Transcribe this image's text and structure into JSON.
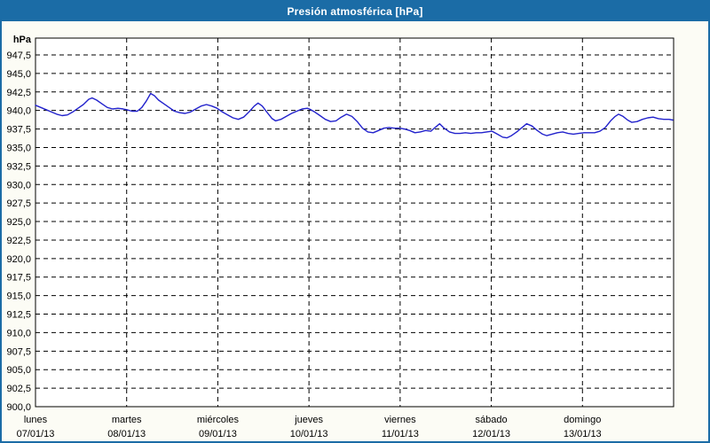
{
  "window": {
    "title": "Presión atmosférica [hPa]"
  },
  "colors": {
    "titlebar_bg": "#1b6ca6",
    "titlebar_text": "#ffffff",
    "window_border": "#1b6ca6",
    "page_bg": "#fcfcf5",
    "plot_bg": "#ffffff",
    "grid": "#000000",
    "axis": "#000000",
    "line": "#2222cc"
  },
  "chart_data": {
    "type": "line",
    "title": "Presión atmosférica [hPa]",
    "ylabel": "hPa",
    "decimal_separator": ",",
    "grid": "dashed",
    "y_axis": {
      "unit_label": "hPa",
      "min": 900,
      "max_tick": 947.5,
      "tick_step": 2.5,
      "tick_labels": [
        "947,5",
        "945,0",
        "942,5",
        "940,0",
        "937,5",
        "935,0",
        "932,5",
        "930,0",
        "927,5",
        "925,0",
        "922,5",
        "920,0",
        "917,5",
        "915,0",
        "912,5",
        "910,0",
        "907,5",
        "905,0",
        "902,5",
        "900,0"
      ],
      "tick_values": [
        947.5,
        945.0,
        942.5,
        940.0,
        937.5,
        935.0,
        932.5,
        930.0,
        927.5,
        925.0,
        922.5,
        920.0,
        917.5,
        915.0,
        912.5,
        910.0,
        907.5,
        905.0,
        902.5,
        900.0
      ]
    },
    "x_axis": {
      "total_hours": 168,
      "day_boundaries_hours": [
        0,
        24,
        48,
        72,
        96,
        120,
        144
      ],
      "categories": [
        {
          "day": "lunes",
          "date": "07/01/13"
        },
        {
          "day": "martes",
          "date": "08/01/13"
        },
        {
          "day": "miércoles",
          "date": "09/01/13"
        },
        {
          "day": "jueves",
          "date": "10/01/13"
        },
        {
          "day": "viernes",
          "date": "11/01/13"
        },
        {
          "day": "sábado",
          "date": "12/01/13"
        },
        {
          "day": "domingo",
          "date": "13/01/13"
        }
      ]
    },
    "series": [
      {
        "name": "Presión atmosférica",
        "unit": "hPa",
        "color": "#2222cc",
        "points": [
          [
            0.0,
            940.7
          ],
          [
            1.4,
            940.4
          ],
          [
            2.8,
            940.1
          ],
          [
            4.2,
            939.8
          ],
          [
            5.6,
            939.5
          ],
          [
            7.0,
            939.3
          ],
          [
            8.4,
            939.4
          ],
          [
            9.8,
            939.8
          ],
          [
            11.2,
            940.3
          ],
          [
            12.6,
            940.8
          ],
          [
            14.0,
            941.5
          ],
          [
            14.9,
            941.7
          ],
          [
            16.1,
            941.4
          ],
          [
            17.5,
            940.9
          ],
          [
            18.9,
            940.4
          ],
          [
            20.3,
            940.2
          ],
          [
            21.7,
            940.3
          ],
          [
            23.1,
            940.2
          ],
          [
            24.0,
            940.1
          ],
          [
            25.4,
            939.9
          ],
          [
            26.8,
            939.9
          ],
          [
            28.0,
            940.4
          ],
          [
            29.2,
            941.3
          ],
          [
            30.3,
            942.3
          ],
          [
            31.3,
            942.0
          ],
          [
            32.4,
            941.4
          ],
          [
            33.8,
            940.9
          ],
          [
            35.2,
            940.4
          ],
          [
            36.6,
            939.9
          ],
          [
            38.0,
            939.7
          ],
          [
            39.4,
            939.6
          ],
          [
            40.8,
            939.8
          ],
          [
            42.2,
            940.2
          ],
          [
            43.6,
            940.6
          ],
          [
            45.0,
            940.8
          ],
          [
            46.4,
            940.6
          ],
          [
            47.8,
            940.3
          ],
          [
            49.2,
            939.8
          ],
          [
            50.6,
            939.4
          ],
          [
            52.0,
            939.0
          ],
          [
            53.4,
            938.8
          ],
          [
            54.8,
            939.1
          ],
          [
            56.2,
            939.8
          ],
          [
            57.6,
            940.6
          ],
          [
            58.6,
            941.0
          ],
          [
            59.7,
            940.6
          ],
          [
            60.9,
            939.8
          ],
          [
            62.3,
            938.9
          ],
          [
            63.2,
            938.6
          ],
          [
            64.6,
            938.8
          ],
          [
            66.0,
            939.2
          ],
          [
            67.4,
            939.6
          ],
          [
            68.8,
            939.9
          ],
          [
            70.2,
            940.2
          ],
          [
            71.6,
            940.3
          ],
          [
            72.1,
            940.2
          ],
          [
            73.5,
            939.8
          ],
          [
            74.9,
            939.3
          ],
          [
            76.3,
            938.8
          ],
          [
            77.7,
            938.5
          ],
          [
            79.1,
            938.6
          ],
          [
            80.5,
            939.1
          ],
          [
            81.9,
            939.5
          ],
          [
            83.3,
            939.2
          ],
          [
            84.7,
            938.5
          ],
          [
            86.1,
            937.6
          ],
          [
            87.5,
            937.1
          ],
          [
            88.9,
            937.0
          ],
          [
            90.3,
            937.3
          ],
          [
            91.7,
            937.6
          ],
          [
            93.1,
            937.7
          ],
          [
            94.5,
            937.6
          ],
          [
            95.9,
            937.6
          ],
          [
            97.1,
            937.5
          ],
          [
            98.5,
            937.3
          ],
          [
            99.9,
            937.0
          ],
          [
            101.3,
            937.1
          ],
          [
            102.7,
            937.3
          ],
          [
            104.1,
            937.2
          ],
          [
            105.2,
            937.7
          ],
          [
            106.4,
            938.2
          ],
          [
            107.6,
            937.6
          ],
          [
            109.0,
            937.1
          ],
          [
            110.4,
            936.9
          ],
          [
            111.8,
            936.9
          ],
          [
            113.2,
            937.0
          ],
          [
            114.6,
            936.9
          ],
          [
            116.0,
            937.0
          ],
          [
            117.4,
            937.0
          ],
          [
            118.8,
            937.1
          ],
          [
            120.2,
            937.2
          ],
          [
            121.6,
            936.8
          ],
          [
            123.0,
            936.4
          ],
          [
            124.1,
            936.3
          ],
          [
            125.3,
            936.6
          ],
          [
            126.7,
            937.1
          ],
          [
            128.1,
            937.7
          ],
          [
            129.3,
            938.2
          ],
          [
            130.7,
            937.9
          ],
          [
            132.1,
            937.3
          ],
          [
            133.5,
            936.8
          ],
          [
            134.6,
            936.6
          ],
          [
            136.0,
            936.8
          ],
          [
            137.4,
            937.0
          ],
          [
            138.8,
            937.1
          ],
          [
            140.2,
            936.9
          ],
          [
            141.6,
            936.8
          ],
          [
            143.0,
            936.9
          ],
          [
            144.4,
            937.0
          ],
          [
            145.8,
            937.0
          ],
          [
            147.2,
            937.0
          ],
          [
            148.6,
            937.2
          ],
          [
            150.0,
            937.7
          ],
          [
            151.4,
            938.6
          ],
          [
            152.6,
            939.2
          ],
          [
            153.5,
            939.5
          ],
          [
            154.7,
            939.2
          ],
          [
            155.9,
            938.7
          ],
          [
            157.0,
            938.4
          ],
          [
            158.4,
            938.5
          ],
          [
            159.8,
            938.8
          ],
          [
            161.2,
            939.0
          ],
          [
            162.6,
            939.1
          ],
          [
            164.0,
            938.9
          ],
          [
            165.4,
            938.8
          ],
          [
            166.8,
            938.8
          ],
          [
            167.8,
            938.7
          ]
        ]
      }
    ]
  }
}
